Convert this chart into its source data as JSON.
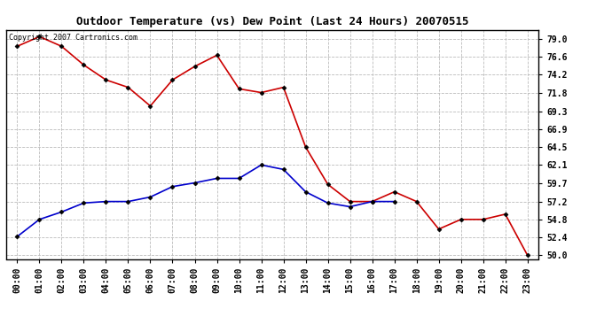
{
  "title": "Outdoor Temperature (vs) Dew Point (Last 24 Hours) 20070515",
  "copyright_text": "Copyright 2007 Cartronics.com",
  "x_labels": [
    "00:00",
    "01:00",
    "02:00",
    "03:00",
    "04:00",
    "05:00",
    "06:00",
    "07:00",
    "08:00",
    "09:00",
    "10:00",
    "11:00",
    "12:00",
    "13:00",
    "14:00",
    "15:00",
    "16:00",
    "17:00",
    "18:00",
    "19:00",
    "20:00",
    "21:00",
    "22:00",
    "23:00"
  ],
  "temp_data": [
    78.0,
    79.3,
    78.0,
    75.5,
    73.5,
    72.5,
    70.0,
    73.5,
    75.3,
    76.8,
    72.3,
    71.8,
    72.5,
    64.5,
    59.5,
    57.2,
    57.2,
    58.5,
    57.2,
    53.5,
    54.8,
    54.8,
    55.5,
    50.0
  ],
  "dew_data": [
    52.5,
    54.8,
    55.8,
    57.0,
    57.2,
    57.2,
    57.8,
    59.2,
    59.7,
    60.3,
    60.3,
    62.1,
    61.5,
    58.5,
    57.0,
    56.5,
    57.2,
    57.2,
    null,
    null,
    null,
    null,
    null,
    null
  ],
  "temp_color": "#cc0000",
  "dew_color": "#0000cc",
  "bg_color": "#ffffff",
  "grid_color": "#bbbbbb",
  "y_ticks": [
    50.0,
    52.4,
    54.8,
    57.2,
    59.7,
    62.1,
    64.5,
    66.9,
    69.3,
    71.8,
    74.2,
    76.6,
    79.0
  ],
  "ylim": [
    49.5,
    80.2
  ],
  "marker": "D",
  "marker_size": 2.5,
  "line_width": 1.2,
  "title_fontsize": 9,
  "tick_fontsize": 7
}
